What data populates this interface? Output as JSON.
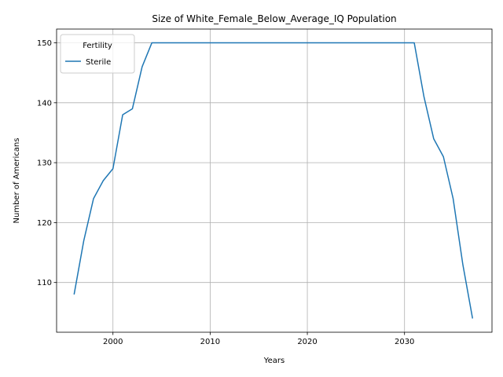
{
  "chart_data": {
    "type": "line",
    "title": "Size of White_Female_Below_Average_IQ Population",
    "xlabel": "Years",
    "ylabel": "Number of Americans",
    "xlim": [
      1994.2,
      2039
    ],
    "ylim": [
      101.7,
      152.3
    ],
    "x_ticks": [
      2000,
      2010,
      2020,
      2030
    ],
    "y_ticks": [
      110,
      120,
      130,
      140,
      150
    ],
    "grid": true,
    "legend": {
      "title": "Fertility",
      "position": "top-left"
    },
    "series": [
      {
        "name": "Sterile",
        "color": "#1f77b4",
        "x": [
          1996,
          1997,
          1998,
          1999,
          2000,
          2001,
          2002,
          2003,
          2004,
          2005,
          2010,
          2015,
          2020,
          2025,
          2030,
          2031,
          2032,
          2033,
          2034,
          2035,
          2036,
          2037
        ],
        "y": [
          108,
          117,
          124,
          127,
          129,
          138,
          139,
          146,
          150,
          150,
          150,
          150,
          150,
          150,
          150,
          150,
          141,
          134,
          131,
          124,
          113,
          104
        ]
      }
    ]
  }
}
